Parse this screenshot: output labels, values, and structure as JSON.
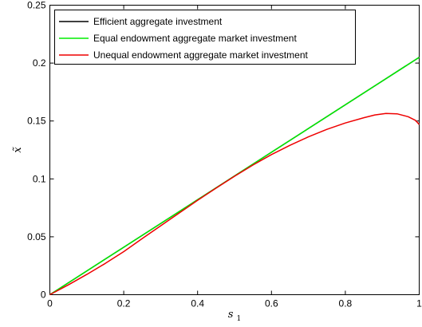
{
  "chart_data": {
    "type": "line",
    "title": "",
    "xlabel": "s1",
    "ylabel": "x̃",
    "xlim": [
      0,
      1
    ],
    "ylim": [
      0,
      0.25
    ],
    "grid": false,
    "legend_position": "top-left",
    "x_ticks": [
      "0",
      "0.2",
      "0.4",
      "0.6",
      "0.8",
      "1"
    ],
    "y_ticks": [
      "0",
      "0.05",
      "0.1",
      "0.15",
      "0.2",
      "0.25"
    ],
    "x_tick_values": [
      0,
      0.2,
      0.4,
      0.6,
      0.8,
      1
    ],
    "y_tick_values": [
      0,
      0.05,
      0.1,
      0.15,
      0.2,
      0.25
    ],
    "series": [
      {
        "name": "Efficient aggregate investment",
        "color": "#000000",
        "x": [
          0,
          0.1,
          0.2,
          0.3,
          0.4,
          0.5,
          0.6,
          0.7,
          0.8,
          0.9,
          1.0
        ],
        "y": [
          0,
          0.0205,
          0.041,
          0.0615,
          0.082,
          0.1025,
          0.123,
          0.1435,
          0.164,
          0.1845,
          0.205
        ]
      },
      {
        "name": "Equal endowment aggregate market investment",
        "color": "#00ee00",
        "x": [
          0,
          0.1,
          0.2,
          0.3,
          0.4,
          0.5,
          0.6,
          0.7,
          0.8,
          0.9,
          1.0
        ],
        "y": [
          0,
          0.0205,
          0.041,
          0.0615,
          0.082,
          0.1025,
          0.123,
          0.1435,
          0.164,
          0.1845,
          0.205
        ]
      },
      {
        "name": "Unequal endowment aggregate market investment",
        "color": "#ee0000",
        "x": [
          0,
          0.05,
          0.1,
          0.15,
          0.2,
          0.25,
          0.3,
          0.35,
          0.4,
          0.45,
          0.5,
          0.55,
          0.6,
          0.65,
          0.7,
          0.75,
          0.8,
          0.85,
          0.88,
          0.91,
          0.94,
          0.97,
          0.99,
          1.0
        ],
        "y": [
          0,
          0.0085,
          0.0175,
          0.027,
          0.0372,
          0.0485,
          0.0595,
          0.0705,
          0.0815,
          0.092,
          0.1023,
          0.112,
          0.121,
          0.129,
          0.1363,
          0.1428,
          0.1483,
          0.1528,
          0.1552,
          0.1565,
          0.1562,
          0.1537,
          0.1505,
          0.147
        ]
      }
    ]
  }
}
